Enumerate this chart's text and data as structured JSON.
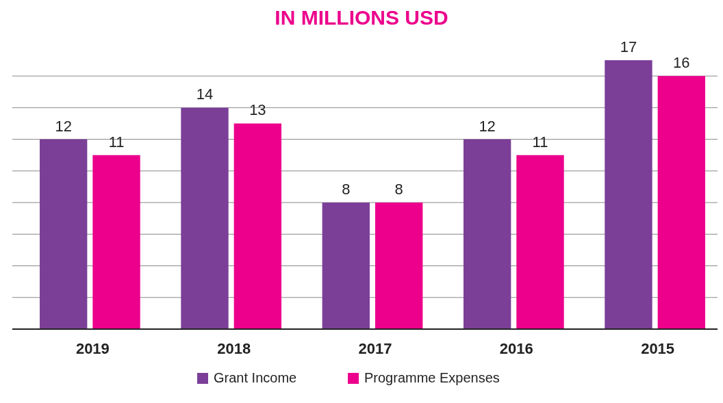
{
  "chart_data": {
    "type": "bar",
    "title": "IN MILLIONS USD",
    "categories": [
      "2019",
      "2018",
      "2017",
      "2016",
      "2015"
    ],
    "series": [
      {
        "name": "Grant Income",
        "color": "#7b3f98",
        "values": [
          12,
          14,
          8,
          12,
          17
        ]
      },
      {
        "name": "Programme Expenses",
        "color": "#ec008c",
        "values": [
          11,
          13,
          8,
          11,
          16
        ]
      }
    ],
    "yticks": [
      {
        "value": 2,
        "label": null
      },
      {
        "value": 4,
        "label": null
      },
      {
        "value": 6,
        "label": null
      },
      {
        "value": 8,
        "label": null
      },
      {
        "value": 10,
        "label": null
      },
      {
        "value": 12,
        "label": null
      },
      {
        "value": 14,
        "label": null
      },
      {
        "value": 16,
        "label": null
      }
    ],
    "tick_labels": "x",
    "grid": "y",
    "data_labels": true,
    "legend": "bottom"
  }
}
